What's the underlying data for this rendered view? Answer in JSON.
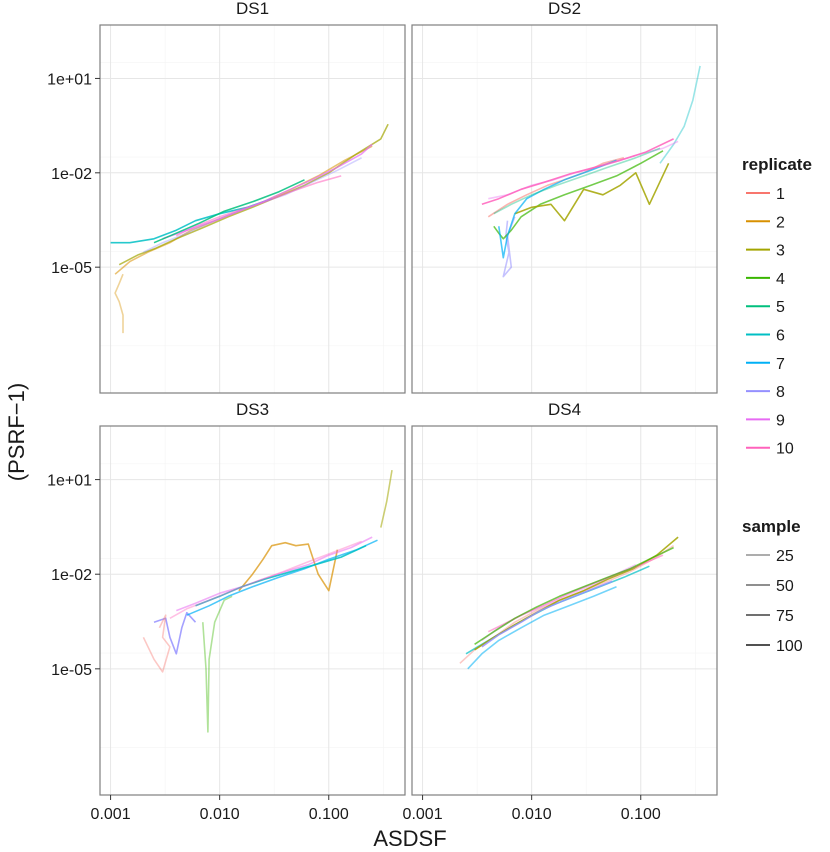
{
  "chart_data": {
    "type": "line",
    "xlabel": "ASDSF",
    "ylabel": "(PSRF−1)",
    "xscale": "log10",
    "yscale": "log10",
    "xlim": [
      0.0008,
      0.5
    ],
    "ylim": [
      1e-09,
      500
    ],
    "x_ticks": [
      {
        "value": 0.001,
        "label": "0.001"
      },
      {
        "value": 0.01,
        "label": "0.010"
      },
      {
        "value": 0.1,
        "label": "0.100"
      }
    ],
    "y_ticks": [
      {
        "value": 10,
        "label": "1e+01"
      },
      {
        "value": 0.01,
        "label": "1e-02"
      },
      {
        "value": 1e-05,
        "label": "1e-05"
      }
    ],
    "panels": [
      {
        "label": "DS1",
        "series": [
          {
            "replicate": 2,
            "x": [
              0.0013,
              0.0012,
              0.0011,
              0.0012,
              0.0013,
              0.0013
            ],
            "y": [
              6e-06,
              3e-06,
              1.5e-06,
              8e-07,
              3e-07,
              8e-08
            ]
          },
          {
            "replicate": 2,
            "x": [
              0.0011,
              0.0015,
              0.0022,
              0.0035,
              0.0055,
              0.009,
              0.015,
              0.025,
              0.045,
              0.08,
              0.14,
              0.25
            ],
            "y": [
              6e-06,
              1.5e-05,
              3e-05,
              6e-05,
              0.00015,
              0.0003,
              0.0006,
              0.0012,
              0.003,
              0.008,
              0.025,
              0.07
            ]
          },
          {
            "replicate": 3,
            "x": [
              0.0012,
              0.0018,
              0.0026,
              0.004,
              0.007,
              0.012,
              0.02,
              0.035,
              0.06,
              0.1,
              0.18,
              0.3,
              0.35
            ],
            "y": [
              1.2e-05,
              2.5e-05,
              4e-05,
              8e-05,
              0.00018,
              0.0004,
              0.0008,
              0.0018,
              0.004,
              0.01,
              0.04,
              0.12,
              0.35
            ]
          },
          {
            "replicate": 6,
            "x": [
              0.001,
              0.0015,
              0.0025,
              0.004,
              0.006,
              0.01,
              0.018,
              0.03
            ],
            "y": [
              6e-05,
              6e-05,
              8e-05,
              0.00015,
              0.0003,
              0.0005,
              0.0008,
              0.0015
            ]
          },
          {
            "replicate": 8,
            "x": [
              0.002,
              0.003,
              0.005,
              0.008,
              0.013,
              0.022,
              0.04,
              0.07,
              0.12,
              0.2
            ],
            "y": [
              3e-05,
              6e-05,
              0.00012,
              0.00025,
              0.0005,
              0.001,
              0.002,
              0.005,
              0.012,
              0.03
            ]
          },
          {
            "replicate": 10,
            "x": [
              0.004,
              0.006,
              0.01,
              0.016,
              0.026,
              0.045,
              0.08,
              0.13
            ],
            "y": [
              0.0001,
              0.0002,
              0.0004,
              0.0007,
              0.0012,
              0.0025,
              0.005,
              0.008
            ]
          },
          {
            "replicate": 9,
            "x": [
              0.003,
              0.005,
              0.009,
              0.015,
              0.025,
              0.04,
              0.07,
              0.12,
              0.2,
              0.25
            ],
            "y": [
              8e-05,
              0.00015,
              0.0003,
              0.0006,
              0.0012,
              0.0025,
              0.006,
              0.015,
              0.04,
              0.08
            ]
          },
          {
            "replicate": 5,
            "x": [
              0.0025,
              0.004,
              0.0065,
              0.011,
              0.02,
              0.035,
              0.06
            ],
            "y": [
              6e-05,
              0.00012,
              0.00025,
              0.0006,
              0.0012,
              0.0025,
              0.006
            ]
          }
        ]
      },
      {
        "label": "DS2",
        "series": [
          {
            "replicate": 6,
            "x": [
              0.15,
              0.2,
              0.25,
              0.3,
              0.35
            ],
            "y": [
              0.02,
              0.08,
              0.3,
              2,
              25
            ]
          },
          {
            "replicate": 8,
            "x": [
              0.006,
              0.0058,
              0.0062,
              0.0055,
              0.0065,
              0.006,
              0.007
            ],
            "y": [
              0.0003,
              0.0001,
              3e-05,
              5e-06,
              1e-05,
              0.0001,
              0.0004
            ]
          },
          {
            "replicate": 4,
            "x": [
              0.0045,
              0.005,
              0.0055,
              0.0065,
              0.008,
              0.012,
              0.02,
              0.035,
              0.06,
              0.1,
              0.16
            ],
            "y": [
              0.0002,
              0.00012,
              8e-05,
              0.00015,
              0.0004,
              0.001,
              0.002,
              0.004,
              0.008,
              0.02,
              0.05
            ]
          },
          {
            "replicate": 3,
            "x": [
              0.007,
              0.01,
              0.015,
              0.02,
              0.03,
              0.045,
              0.065,
              0.09,
              0.12,
              0.18
            ],
            "y": [
              0.0005,
              0.0008,
              0.001,
              0.0003,
              0.003,
              0.002,
              0.004,
              0.01,
              0.001,
              0.02
            ]
          },
          {
            "replicate": 9,
            "x": [
              0.004,
              0.006,
              0.01,
              0.016,
              0.025,
              0.04,
              0.065,
              0.1,
              0.16,
              0.22
            ],
            "y": [
              0.0015,
              0.002,
              0.004,
              0.006,
              0.01,
              0.015,
              0.025,
              0.04,
              0.06,
              0.1
            ]
          },
          {
            "replicate": 1,
            "x": [
              0.004,
              0.006,
              0.009,
              0.014,
              0.02,
              0.03,
              0.045,
              0.07
            ],
            "y": [
              0.0004,
              0.001,
              0.002,
              0.004,
              0.006,
              0.01,
              0.02,
              0.03
            ]
          },
          {
            "replicate": 7,
            "x": [
              0.005,
              0.0055,
              0.006,
              0.007,
              0.009,
              0.013,
              0.02,
              0.035,
              0.06
            ],
            "y": [
              0.0002,
              2e-05,
              0.0001,
              0.0005,
              0.0015,
              0.003,
              0.006,
              0.012,
              0.025
            ]
          },
          {
            "replicate": 10,
            "x": [
              0.0035,
              0.005,
              0.008,
              0.013,
              0.022,
              0.038,
              0.065,
              0.11,
              0.2
            ],
            "y": [
              0.001,
              0.0015,
              0.003,
              0.005,
              0.009,
              0.015,
              0.025,
              0.045,
              0.12
            ]
          },
          {
            "replicate": 5,
            "x": [
              0.0045,
              0.0065,
              0.01,
              0.017,
              0.03,
              0.05,
              0.09,
              0.15
            ],
            "y": [
              0.0005,
              0.001,
              0.002,
              0.004,
              0.008,
              0.015,
              0.03,
              0.06
            ]
          }
        ]
      },
      {
        "label": "DS3",
        "series": [
          {
            "replicate": 4,
            "x": [
              0.007,
              0.0075,
              0.0078,
              0.008,
              0.009,
              0.011,
              0.013
            ],
            "y": [
              0.0003,
              1e-05,
              1e-07,
              2e-05,
              0.0003,
              0.0015,
              0.002
            ]
          },
          {
            "replicate": 3,
            "x": [
              0.3,
              0.34,
              0.38
            ],
            "y": [
              0.3,
              2,
              20
            ]
          },
          {
            "replicate": 2,
            "x": [
              0.015,
              0.02,
              0.025,
              0.03,
              0.04,
              0.05,
              0.065,
              0.08,
              0.1,
              0.12
            ],
            "y": [
              0.003,
              0.01,
              0.03,
              0.08,
              0.1,
              0.08,
              0.09,
              0.01,
              0.003,
              0.06
            ]
          },
          {
            "replicate": 8,
            "x": [
              0.0025,
              0.0032,
              0.0035,
              0.004,
              0.0045,
              0.005,
              0.006
            ],
            "y": [
              0.0003,
              0.0004,
              0.0001,
              3e-05,
              0.0002,
              0.0006,
              0.0003
            ]
          },
          {
            "replicate": 1,
            "x": [
              0.002,
              0.0025,
              0.003,
              0.0035,
              0.003,
              0.0032,
              0.0028
            ],
            "y": [
              0.0001,
              2e-05,
              8e-06,
              5e-05,
              0.0001,
              0.0005,
              0.0002
            ]
          },
          {
            "replicate": 9,
            "x": [
              0.004,
              0.006,
              0.01,
              0.016,
              0.025,
              0.04,
              0.065,
              0.1,
              0.16,
              0.25
            ],
            "y": [
              0.0007,
              0.0012,
              0.0025,
              0.004,
              0.007,
              0.012,
              0.02,
              0.04,
              0.07,
              0.15
            ]
          },
          {
            "replicate": 7,
            "x": [
              0.005,
              0.008,
              0.012,
              0.02,
              0.035,
              0.06,
              0.1,
              0.18,
              0.28
            ],
            "y": [
              0.0005,
              0.001,
              0.002,
              0.004,
              0.008,
              0.015,
              0.03,
              0.06,
              0.12
            ]
          },
          {
            "replicate": 6,
            "x": [
              0.006,
              0.01,
              0.016,
              0.026,
              0.045,
              0.075,
              0.13,
              0.22
            ],
            "y": [
              0.001,
              0.002,
              0.004,
              0.007,
              0.012,
              0.02,
              0.035,
              0.08
            ]
          },
          {
            "replicate": 10,
            "x": [
              0.0035,
              0.005,
              0.008,
              0.013,
              0.022,
              0.038,
              0.065,
              0.11,
              0.2
            ],
            "y": [
              0.0004,
              0.0008,
              0.0015,
              0.003,
              0.006,
              0.012,
              0.025,
              0.05,
              0.11
            ]
          }
        ]
      },
      {
        "label": "DS4",
        "series": [
          {
            "replicate": 1,
            "x": [
              0.0022,
              0.003,
              0.0045,
              0.007,
              0.011,
              0.018,
              0.03,
              0.05,
              0.08,
              0.13,
              0.2
            ],
            "y": [
              1.5e-05,
              4e-05,
              0.0001,
              0.0003,
              0.0007,
              0.0015,
              0.003,
              0.006,
              0.012,
              0.03,
              0.08
            ]
          },
          {
            "replicate": 7,
            "x": [
              0.0026,
              0.0035,
              0.005,
              0.008,
              0.013,
              0.022,
              0.037,
              0.06
            ],
            "y": [
              1e-05,
              3e-05,
              8e-05,
              0.0002,
              0.0005,
              0.001,
              0.002,
              0.004
            ]
          },
          {
            "replicate": 6,
            "x": [
              0.0025,
              0.0035,
              0.0055,
              0.009,
              0.015,
              0.025,
              0.042,
              0.07,
              0.12
            ],
            "y": [
              3e-05,
              6e-05,
              0.00015,
              0.0004,
              0.001,
              0.002,
              0.004,
              0.008,
              0.018
            ]
          },
          {
            "replicate": 3,
            "x": [
              0.003,
              0.0045,
              0.007,
              0.011,
              0.018,
              0.03,
              0.05,
              0.085,
              0.14,
              0.22
            ],
            "y": [
              4e-05,
              0.0001,
              0.00025,
              0.0006,
              0.0015,
              0.003,
              0.007,
              0.015,
              0.04,
              0.15
            ]
          },
          {
            "replicate": 9,
            "x": [
              0.0035,
              0.005,
              0.008,
              0.013,
              0.02,
              0.033,
              0.055,
              0.09
            ],
            "y": [
              8e-05,
              0.0002,
              0.0005,
              0.001,
              0.002,
              0.004,
              0.009,
              0.02
            ]
          },
          {
            "replicate": 10,
            "x": [
              0.004,
              0.006,
              0.009,
              0.014,
              0.022,
              0.036,
              0.06,
              0.1,
              0.16
            ],
            "y": [
              0.00015,
              0.0003,
              0.0006,
              0.0012,
              0.0025,
              0.005,
              0.01,
              0.02,
              0.04
            ]
          },
          {
            "replicate": 4,
            "x": [
              0.003,
              0.0045,
              0.007,
              0.011,
              0.018,
              0.03,
              0.05,
              0.08,
              0.12,
              0.2
            ],
            "y": [
              6e-05,
              0.00015,
              0.0004,
              0.0009,
              0.002,
              0.004,
              0.008,
              0.015,
              0.03,
              0.07
            ]
          },
          {
            "replicate": 8,
            "x": [
              0.0035,
              0.005,
              0.008,
              0.012,
              0.02,
              0.033,
              0.055
            ],
            "y": [
              5e-05,
              0.00012,
              0.0003,
              0.0007,
              0.0015,
              0.003,
              0.006
            ]
          }
        ]
      }
    ],
    "legend": {
      "replicate": {
        "title": "replicate",
        "items": [
          {
            "label": "1",
            "color": "#F8766D"
          },
          {
            "label": "2",
            "color": "#D89000"
          },
          {
            "label": "3",
            "color": "#A3A500"
          },
          {
            "label": "4",
            "color": "#39B600"
          },
          {
            "label": "5",
            "color": "#00BF7D"
          },
          {
            "label": "6",
            "color": "#00BFC4"
          },
          {
            "label": "7",
            "color": "#00B0F6"
          },
          {
            "label": "8",
            "color": "#9590FF"
          },
          {
            "label": "9",
            "color": "#E76BF3"
          },
          {
            "label": "10",
            "color": "#FF62BC"
          }
        ]
      },
      "sample": {
        "title": "sample",
        "items": [
          {
            "label": "25",
            "opacity": 0.3
          },
          {
            "label": "50",
            "opacity": 0.45
          },
          {
            "label": "75",
            "opacity": 0.6
          },
          {
            "label": "100",
            "opacity": 0.75
          }
        ]
      }
    }
  }
}
